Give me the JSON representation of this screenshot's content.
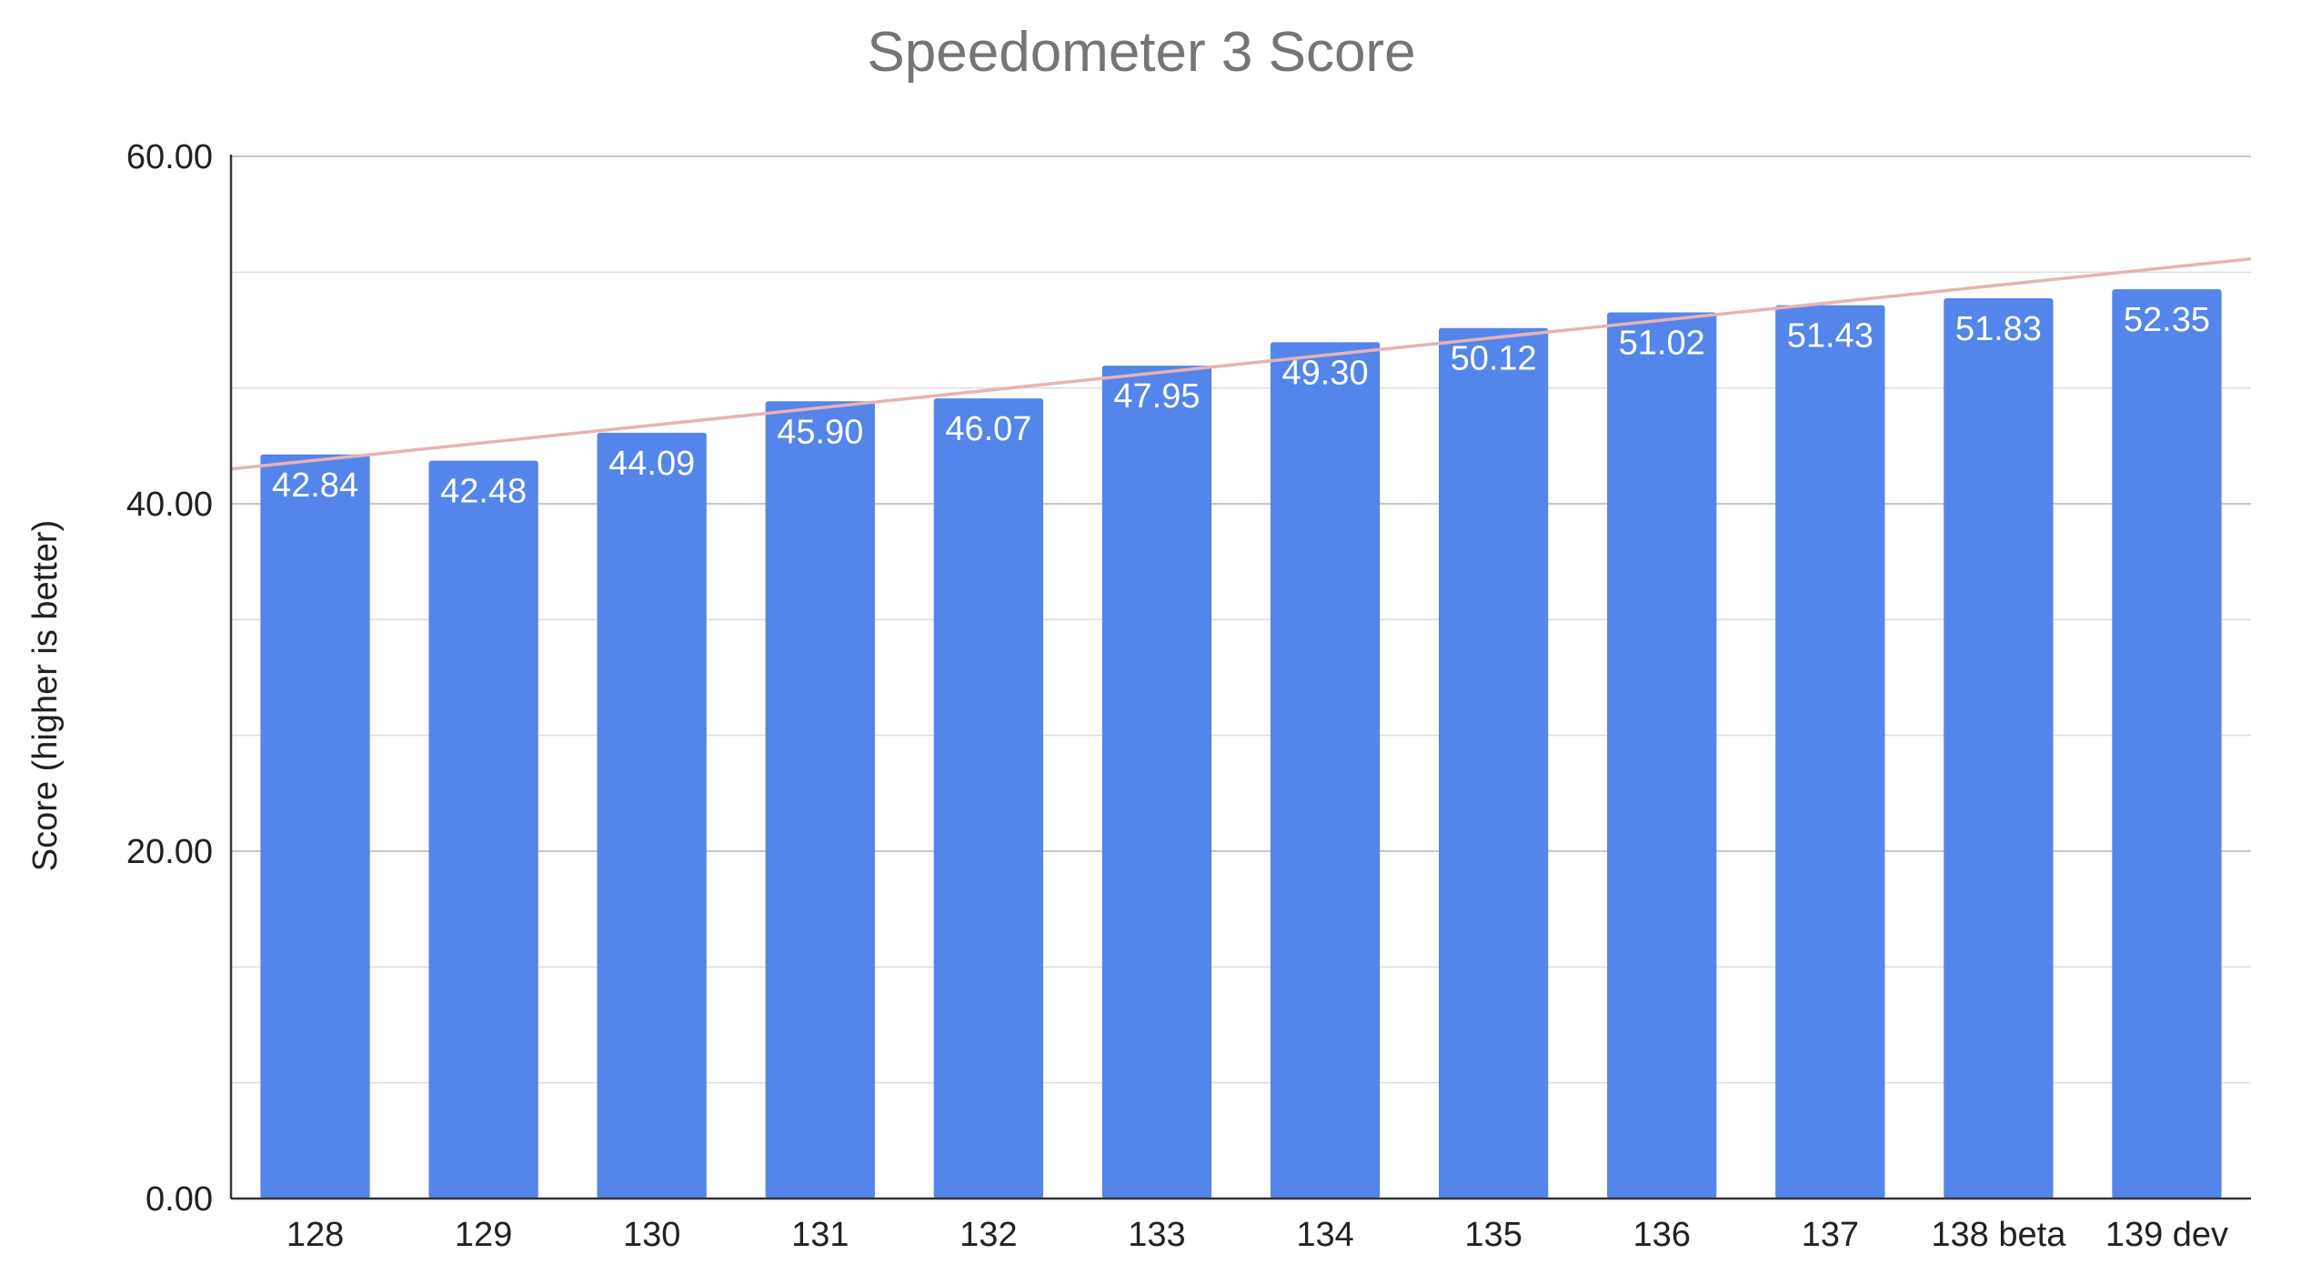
{
  "chart_data": {
    "type": "bar",
    "title": "Speedometer 3 Score",
    "xlabel": "",
    "ylabel": "Score (higher is better)",
    "categories": [
      "128",
      "129",
      "130",
      "131",
      "132",
      "133",
      "134",
      "135",
      "136",
      "137",
      "138 beta",
      "139 dev"
    ],
    "values": [
      42.84,
      42.48,
      44.09,
      45.9,
      46.07,
      47.95,
      49.3,
      50.12,
      51.02,
      51.43,
      51.83,
      52.35
    ],
    "data_labels": [
      "42.84",
      "42.48",
      "44.09",
      "45.90",
      "46.07",
      "47.95",
      "49.30",
      "50.12",
      "51.02",
      "51.43",
      "51.83",
      "52.35"
    ],
    "ylim": [
      0,
      60
    ],
    "y_ticks": [
      0,
      20,
      40,
      60
    ],
    "y_tick_labels": [
      "0.00",
      "20.00",
      "40.00",
      "60.00"
    ],
    "minor_grid_step": 6.6667,
    "grid": true,
    "legend": "none",
    "trendline": {
      "type": "linear",
      "start": 42.0,
      "end": 54.1
    },
    "colors": {
      "bar": "#5485ea",
      "trendline": "#e8b3b3",
      "grid": "#dddddd",
      "axis": "#333333",
      "title": "#757575"
    }
  }
}
